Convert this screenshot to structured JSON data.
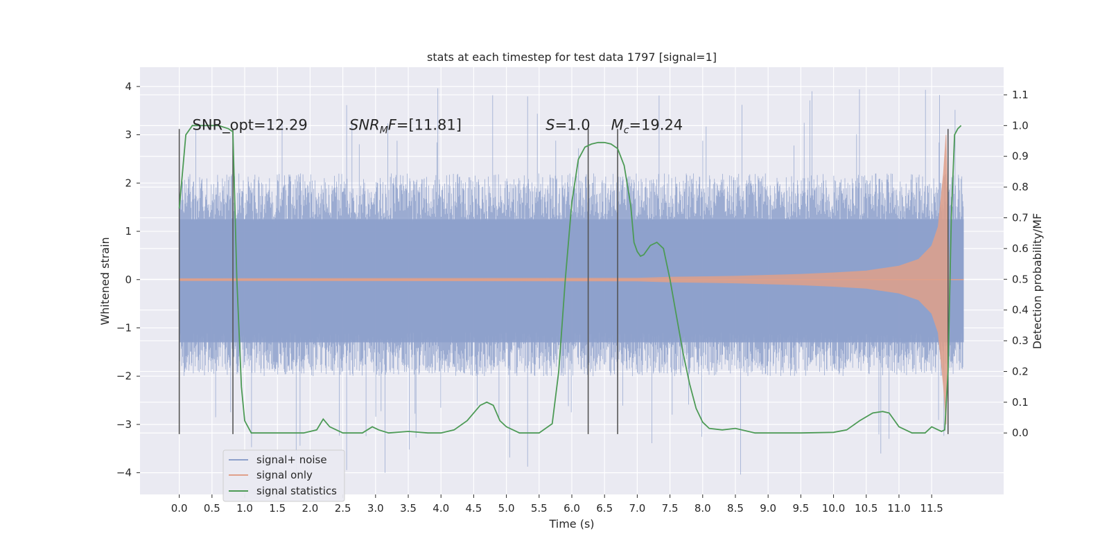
{
  "chart_data": {
    "type": "line",
    "title": "stats at each timestep for test data 1797 [signal=1]",
    "xlabel": "Time (s)",
    "ylabel": "Whitened strain",
    "y2label": "Detection probability/MF",
    "xlim": [
      -0.6,
      12.6
    ],
    "ylim": [
      -4.45,
      4.4
    ],
    "y2lim": [
      -0.2,
      1.19
    ],
    "x_ticks": [
      0.0,
      0.5,
      1.0,
      1.5,
      2.0,
      2.5,
      3.0,
      3.5,
      4.0,
      4.5,
      5.0,
      5.5,
      6.0,
      6.5,
      7.0,
      7.5,
      8.0,
      8.5,
      9.0,
      9.5,
      10.0,
      10.5,
      11.0,
      11.5
    ],
    "x_tick_labels": [
      "0.0",
      "0.5",
      "1.0",
      "1.5",
      "2.0",
      "2.5",
      "3.0",
      "3.5",
      "4.0",
      "4.5",
      "5.0",
      "5.5",
      "6.0",
      "6.5",
      "7.0",
      "7.5",
      "8.0",
      "8.5",
      "9.0",
      "9.5",
      "10.0",
      "10.5",
      "11.0",
      "11.5"
    ],
    "y_ticks": [
      -4,
      -3,
      -2,
      -1,
      0,
      1,
      2,
      3,
      4
    ],
    "y_tick_labels": [
      "−4",
      "−3",
      "−2",
      "−1",
      "0",
      "1",
      "2",
      "3",
      "4"
    ],
    "y2_ticks": [
      0.0,
      0.1,
      0.2,
      0.3,
      0.4,
      0.5,
      0.6,
      0.7,
      0.8,
      0.9,
      1.0,
      1.1
    ],
    "y2_tick_labels": [
      "0.0",
      "0.1",
      "0.2",
      "0.3",
      "0.4",
      "0.5",
      "0.6",
      "0.7",
      "0.8",
      "0.9",
      "1.0",
      "1.1"
    ],
    "grid": true,
    "legend_position": "bottom-left",
    "annotations": [
      {
        "x": 0.2,
        "y": 3.1,
        "text": "SNR_opt=12.29"
      },
      {
        "x": 2.6,
        "y": 3.1,
        "text": "SNRMF=[11.81]"
      },
      {
        "x": 5.6,
        "y": 3.1,
        "text": "S=1.0"
      },
      {
        "x": 6.6,
        "y": 3.1,
        "text": "Mc=19.24"
      }
    ],
    "vertical_lines": [
      0.0,
      0.82,
      6.25,
      6.7,
      11.75
    ],
    "series": [
      {
        "name": "signal+ noise",
        "color": "#8da0cb",
        "axis": "left",
        "x_range": [
          0.0,
          11.99
        ],
        "envelope_upper": 2.2,
        "envelope_lower": -2.0,
        "spike_max": 4.0,
        "spike_min": -4.05
      },
      {
        "name": "signal only",
        "color": "#e0a08a",
        "axis": "left",
        "x": [
          0.0,
          7.0,
          7.5,
          8.0,
          8.5,
          9.0,
          9.5,
          10.0,
          10.5,
          11.0,
          11.3,
          11.5,
          11.6,
          11.68,
          11.72,
          11.76
        ],
        "amplitude": [
          0.02,
          0.03,
          0.05,
          0.06,
          0.07,
          0.09,
          0.11,
          0.14,
          0.18,
          0.28,
          0.42,
          0.7,
          1.1,
          2.2,
          3.0,
          0.4
        ]
      },
      {
        "name": "signal statistics",
        "color": "#4c9a55",
        "axis": "right",
        "x": [
          0.0,
          0.05,
          0.1,
          0.2,
          0.4,
          0.6,
          0.75,
          0.82,
          0.88,
          0.95,
          1.0,
          1.1,
          1.3,
          1.6,
          1.9,
          2.1,
          2.2,
          2.3,
          2.5,
          2.8,
          2.95,
          3.05,
          3.2,
          3.5,
          3.8,
          4.0,
          4.2,
          4.4,
          4.6,
          4.7,
          4.8,
          4.9,
          5.0,
          5.2,
          5.5,
          5.7,
          5.8,
          5.9,
          6.0,
          6.1,
          6.2,
          6.3,
          6.4,
          6.5,
          6.6,
          6.7,
          6.8,
          6.9,
          6.95,
          7.0,
          7.05,
          7.1,
          7.2,
          7.3,
          7.4,
          7.5,
          7.6,
          7.7,
          7.8,
          7.9,
          8.0,
          8.1,
          8.3,
          8.5,
          8.8,
          9.0,
          9.5,
          10.0,
          10.2,
          10.4,
          10.6,
          10.75,
          10.85,
          11.0,
          11.2,
          11.4,
          11.5,
          11.6,
          11.65,
          11.7,
          11.75,
          11.8,
          11.85,
          11.9,
          11.95
        ],
        "values": [
          0.73,
          0.85,
          0.97,
          1.0,
          1.0,
          1.0,
          0.99,
          0.98,
          0.5,
          0.15,
          0.04,
          0.0,
          0.0,
          0.0,
          0.0,
          0.01,
          0.045,
          0.02,
          0.0,
          0.0,
          0.02,
          0.01,
          0.0,
          0.005,
          0.0,
          0.0,
          0.01,
          0.04,
          0.09,
          0.1,
          0.09,
          0.04,
          0.02,
          0.0,
          0.0,
          0.03,
          0.2,
          0.5,
          0.75,
          0.89,
          0.93,
          0.94,
          0.945,
          0.945,
          0.94,
          0.925,
          0.87,
          0.74,
          0.62,
          0.59,
          0.575,
          0.58,
          0.61,
          0.62,
          0.6,
          0.5,
          0.38,
          0.26,
          0.16,
          0.08,
          0.035,
          0.015,
          0.01,
          0.015,
          0.0,
          0.0,
          0.0,
          0.002,
          0.01,
          0.04,
          0.065,
          0.07,
          0.065,
          0.02,
          0.0,
          0.0,
          0.02,
          0.01,
          0.005,
          0.01,
          0.2,
          0.7,
          0.97,
          0.99,
          1.0
        ]
      }
    ]
  },
  "legend": {
    "items": [
      {
        "label": "signal+ noise",
        "color": "#8da0cb"
      },
      {
        "label": "signal only",
        "color": "#e0a08a"
      },
      {
        "label": "signal statistics",
        "color": "#4c9a55"
      }
    ]
  }
}
